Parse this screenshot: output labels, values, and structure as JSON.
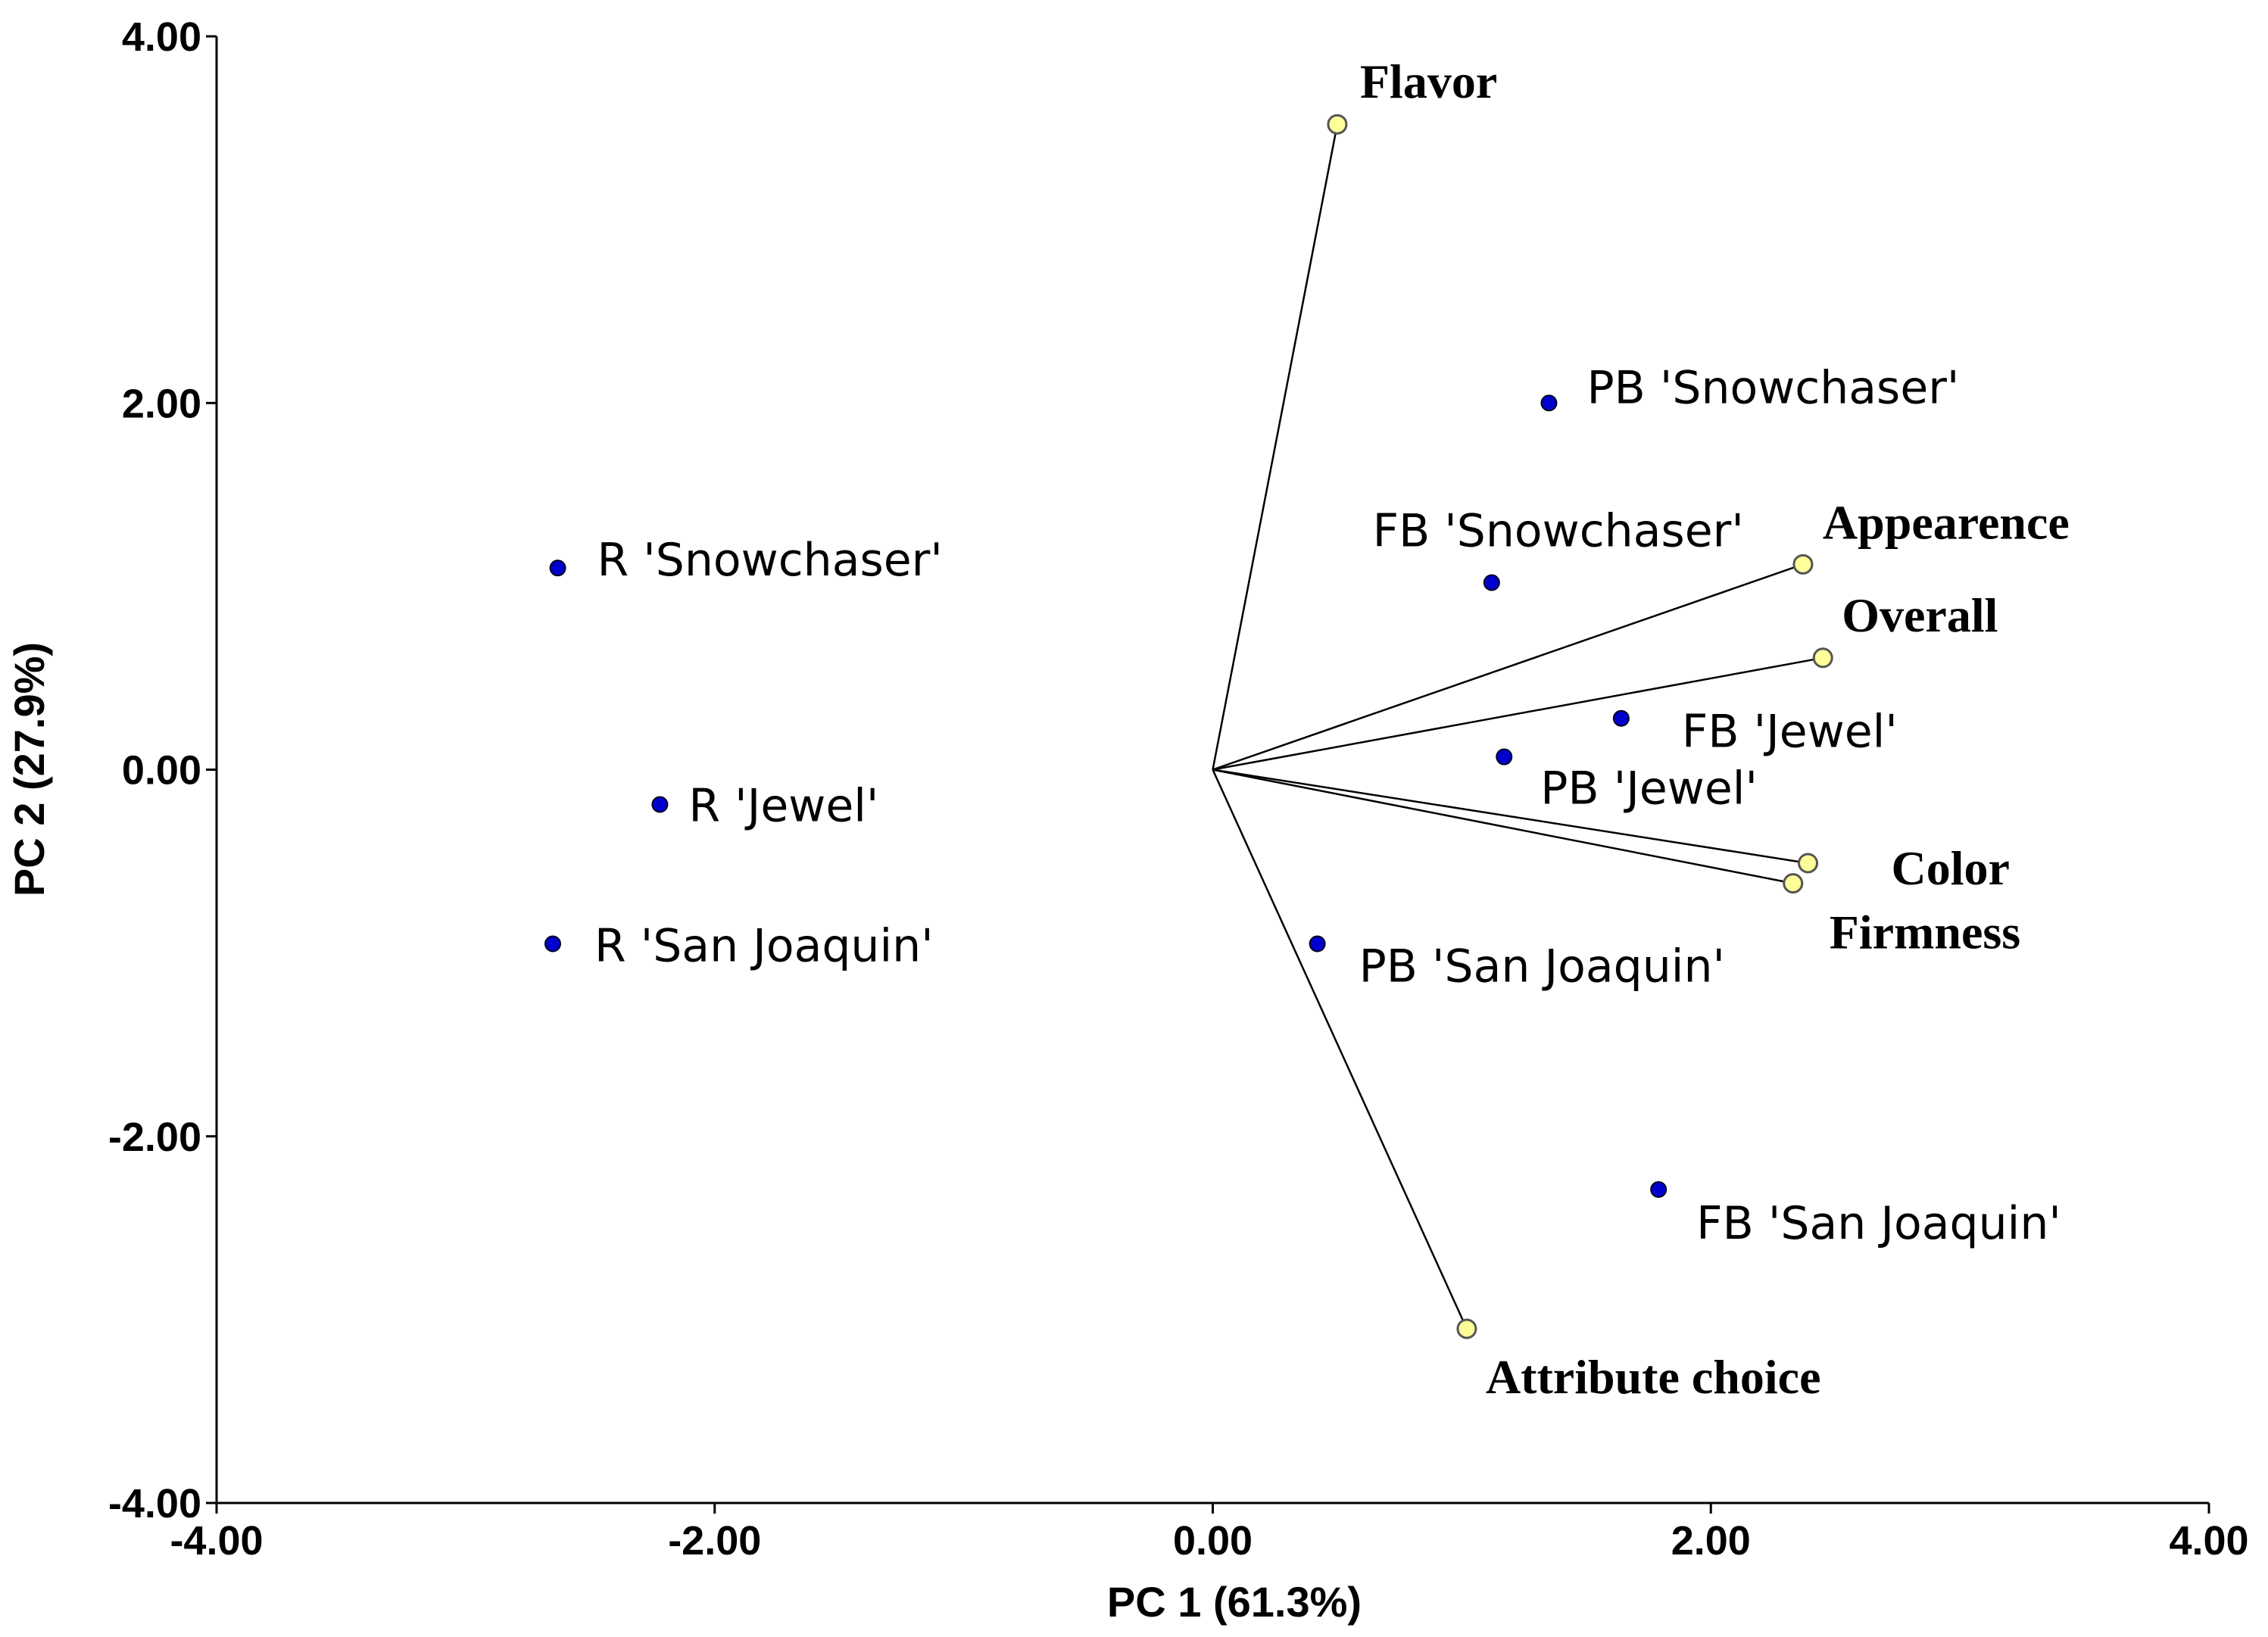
{
  "chart_data": {
    "type": "scatter",
    "subtype": "pca-biplot",
    "xlabel": "PC 1 (61.3%)",
    "ylabel": "PC 2 (27.9%)",
    "xlim": [
      -4,
      4
    ],
    "ylim": [
      -4,
      4
    ],
    "xticks": [
      "-4.00",
      "-2.00",
      "0.00",
      "2.00",
      "4.00"
    ],
    "yticks": [
      "4.00",
      "2.00",
      "0.00",
      "-2.00",
      "-4.00"
    ],
    "grid": false,
    "colors": {
      "samples": "#0000cc",
      "attributes": "#ffff99",
      "lines": "#000000"
    },
    "samples": [
      {
        "label": "PB 'Snowchaser'",
        "x": 1.35,
        "y": 2.0
      },
      {
        "label": "FB 'Snowchaser'",
        "x": 1.12,
        "y": 1.02
      },
      {
        "label": "R 'Snowchaser'",
        "x": -2.63,
        "y": 1.1
      },
      {
        "label": "FB 'Jewel'",
        "x": 1.64,
        "y": 0.28
      },
      {
        "label": "PB 'Jewel'",
        "x": 1.17,
        "y": 0.07
      },
      {
        "label": "R 'Jewel'",
        "x": -2.22,
        "y": -0.19
      },
      {
        "label": "R 'San Joaquin'",
        "x": -2.65,
        "y": -0.95
      },
      {
        "label": "PB 'San Joaquin'",
        "x": 0.42,
        "y": -0.95
      },
      {
        "label": "FB 'San Joaquin'",
        "x": 1.79,
        "y": -2.29
      }
    ],
    "attributes": [
      {
        "label": "Flavor",
        "x": 0.5,
        "y": 3.52
      },
      {
        "label": "Appearence",
        "x": 2.37,
        "y": 1.12
      },
      {
        "label": "Overall",
        "x": 2.45,
        "y": 0.61
      },
      {
        "label": "Color",
        "x": 2.39,
        "y": -0.51
      },
      {
        "label": "Firmness",
        "x": 2.33,
        "y": -0.62
      },
      {
        "label": "Attribute choice",
        "x": 1.02,
        "y": -3.05
      }
    ]
  }
}
